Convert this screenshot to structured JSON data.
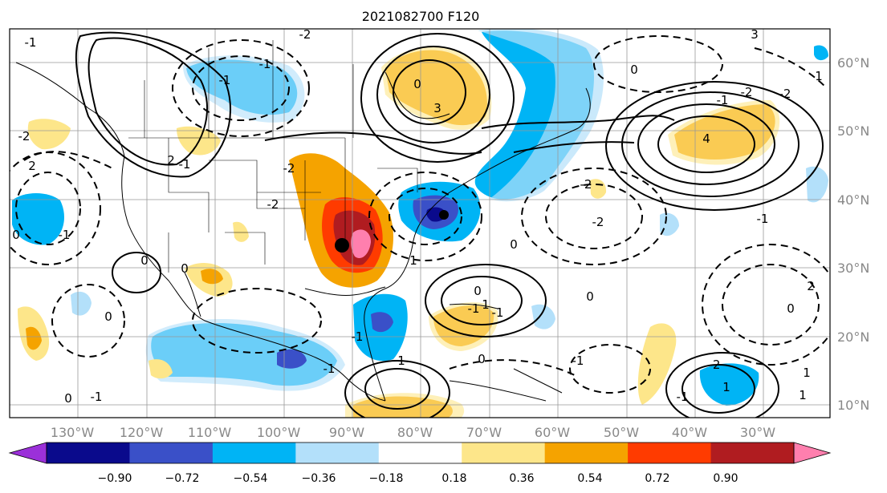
{
  "title": "2021082700 F120",
  "lat_labels": [
    "60°N",
    "50°N",
    "40°N",
    "30°N",
    "20°N",
    "10°N"
  ],
  "lon_labels": [
    "130°W",
    "120°W",
    "110°W",
    "100°W",
    "90°W",
    "80°W",
    "70°W",
    "60°W",
    "50°W",
    "40°W",
    "30°W"
  ],
  "colorbar": {
    "ticks": [
      "−0.90",
      "−0.72",
      "−0.54",
      "−0.36",
      "−0.18",
      "0.18",
      "0.36",
      "0.54",
      "0.72",
      "0.90"
    ],
    "colors": [
      "#9b30d9",
      "#0a0a8c",
      "#3a50c8",
      "#00b4f5",
      "#b3e0fa",
      "#ffffff",
      "#fde68a",
      "#f5a300",
      "#ff3b00",
      "#b01c20",
      "#ff7fae"
    ]
  },
  "contour_labels": [
    "-1",
    "-2",
    "3",
    "0",
    "2",
    "-2",
    "2",
    "-2",
    "-1",
    "-1",
    "0",
    "3",
    "-2",
    "4",
    "-1",
    "0",
    "0",
    "-1",
    "0",
    "1",
    "0",
    "1",
    "-2",
    "-2",
    "-1",
    "-1",
    "0",
    "1",
    "-1",
    "1",
    "2",
    "-1",
    "0",
    "-2",
    "0",
    "-1",
    "-1",
    "0",
    "-1",
    "1",
    "1",
    "-1",
    "0",
    "-1",
    "0",
    "-2",
    "1",
    "-2"
  ]
}
